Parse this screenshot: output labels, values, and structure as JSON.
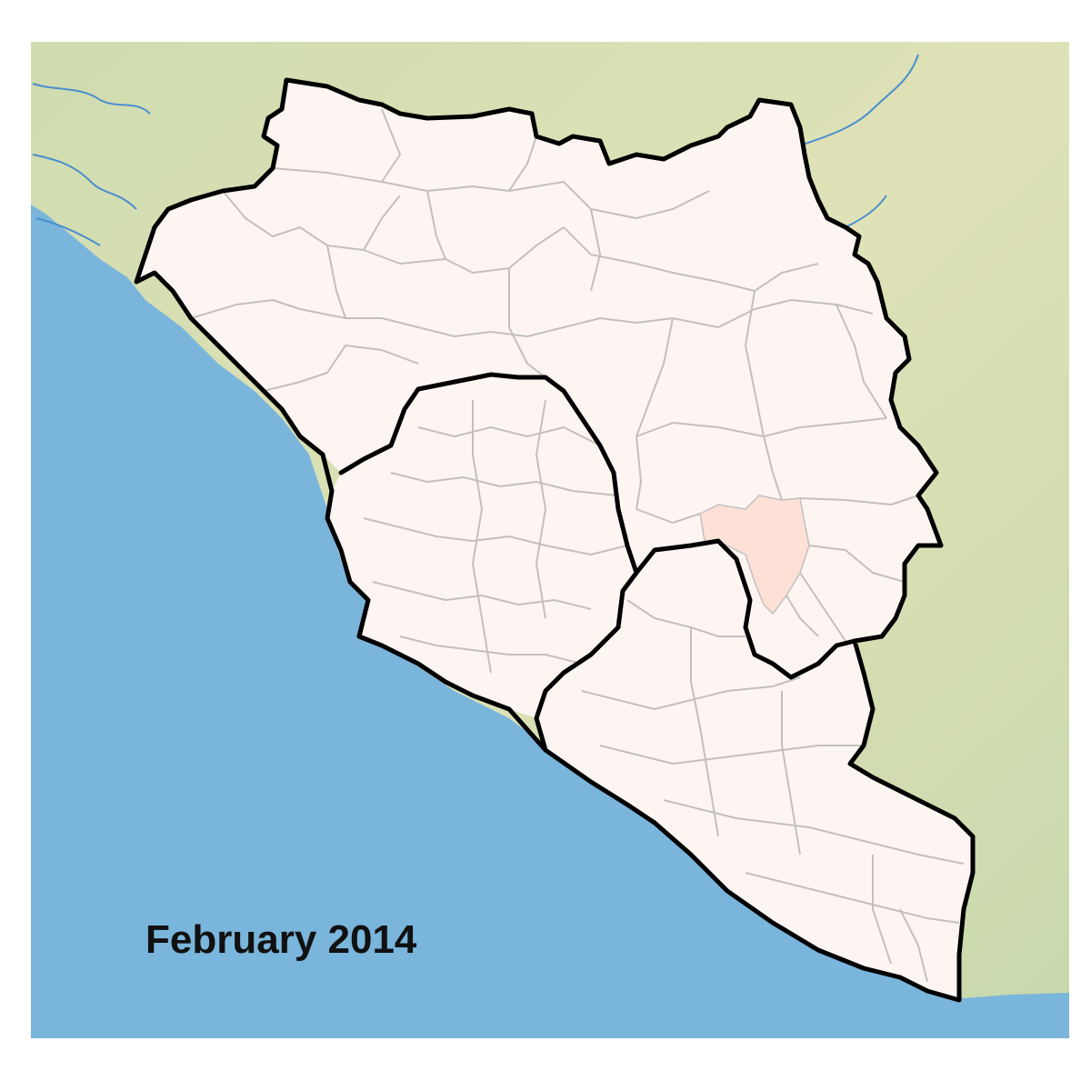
{
  "map": {
    "date_label": "February 2014",
    "colors": {
      "ocean": "#7ab5db",
      "land": "#d2ddb1",
      "land_light": "#e7e6ba",
      "river": "#4a8fd0",
      "region_fill": "#fdf5f2",
      "district_border": "#c2c0bf",
      "country_border": "#000000",
      "affected_fill": "#fde0d6"
    },
    "legend": {
      "affected_region_icon": "affected-region-highlight"
    }
  }
}
